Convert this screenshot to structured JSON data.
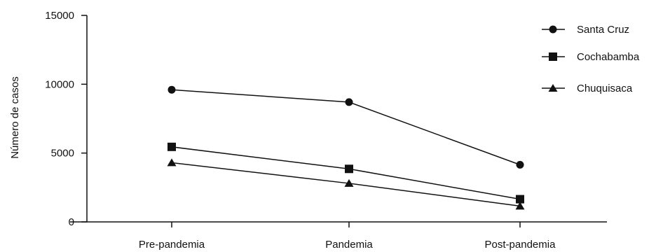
{
  "chart_data": {
    "type": "line",
    "categories": [
      "Pre-pandemia",
      "Pandemia",
      "Post-pandemia"
    ],
    "ylabel": "Número de casos",
    "xlabel": "",
    "ylim": [
      0,
      15000
    ],
    "yticks": [
      0,
      5000,
      10000,
      15000
    ],
    "grid": false,
    "legend_position": "top-right",
    "series": [
      {
        "name": "Santa Cruz",
        "marker": "circle",
        "color": "#111111",
        "values": [
          9600,
          8700,
          4150
        ]
      },
      {
        "name": "Cochabamba",
        "marker": "square",
        "color": "#111111",
        "values": [
          5450,
          3850,
          1650
        ]
      },
      {
        "name": "Chuquisaca",
        "marker": "triangle",
        "color": "#111111",
        "values": [
          4300,
          2800,
          1150
        ]
      }
    ]
  }
}
